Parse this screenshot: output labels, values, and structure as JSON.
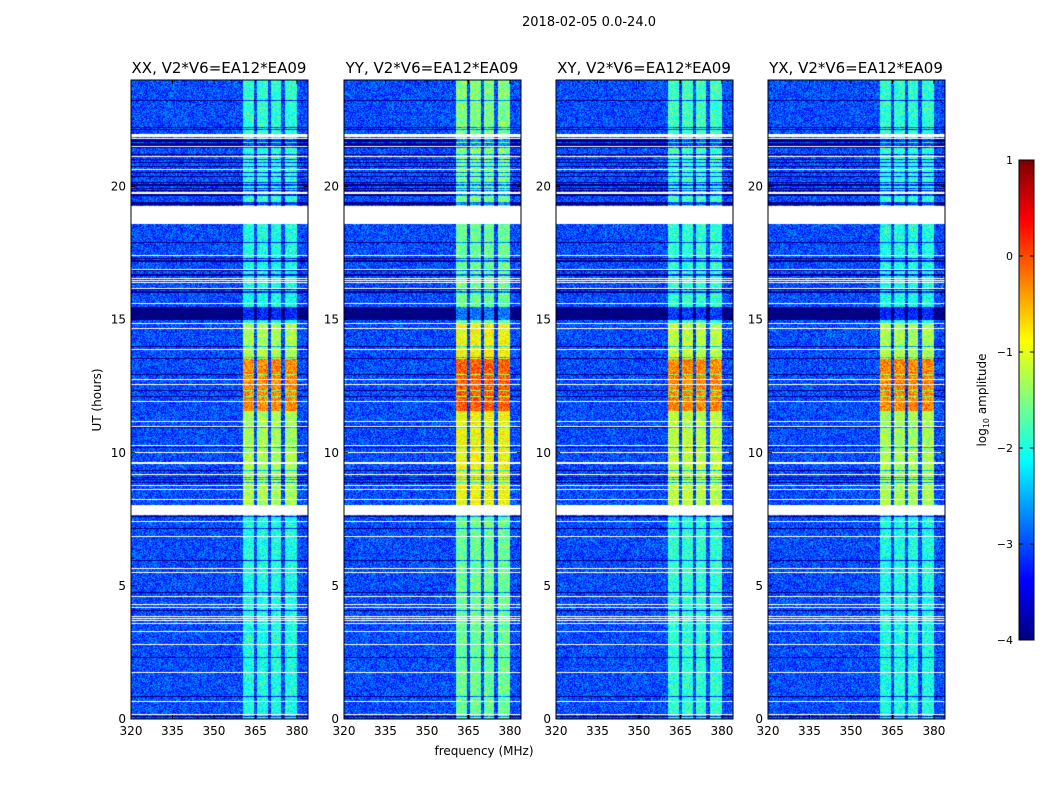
{
  "chart_data": {
    "type": "heatmap",
    "title": "2018-02-05 0.0-24.0",
    "xlabel": "frequency (MHz)",
    "ylabel": "UT (hours)",
    "xlim": [
      320,
      384
    ],
    "ylim": [
      0,
      24
    ],
    "xticks": [
      "320",
      "335",
      "350",
      "365",
      "380"
    ],
    "yticks": [
      "0",
      "5",
      "10",
      "15",
      "20"
    ],
    "panels": [
      {
        "title": "XX, V2*V6=EA12*EA09",
        "band_level": -1.6,
        "peak_level": -0.3
      },
      {
        "title": "YY, V2*V6=EA12*EA09",
        "band_level": -1.2,
        "peak_level": -0.1
      },
      {
        "title": "XY, V2*V6=EA12*EA09",
        "band_level": -1.5,
        "peak_level": -0.3
      },
      {
        "title": "YX, V2*V6=EA12*EA09",
        "band_level": -1.6,
        "peak_level": -0.3
      }
    ],
    "background_level": -3.0,
    "bright_band_mhz": [
      360.5,
      380
    ],
    "subband_gaps_mhz": [
      365,
      370,
      375
    ],
    "peak_hours": [
      11.6,
      13.6
    ],
    "elevated_hours": [
      8.0,
      14.9
    ],
    "blank_hours": [
      [
        18.6,
        19.3
      ],
      [
        7.7,
        8.0
      ]
    ],
    "dark_hours": [
      [
        15.0,
        15.5
      ]
    ],
    "colorbar": {
      "label": "log10 amplitude",
      "label_main": "log",
      "label_sub": "10",
      "label_rest": " amplitude",
      "range": [
        -4,
        1
      ],
      "ticks": [
        "1",
        "0",
        "−1",
        "−2",
        "−3",
        "−4"
      ],
      "colormap": "jet"
    }
  }
}
